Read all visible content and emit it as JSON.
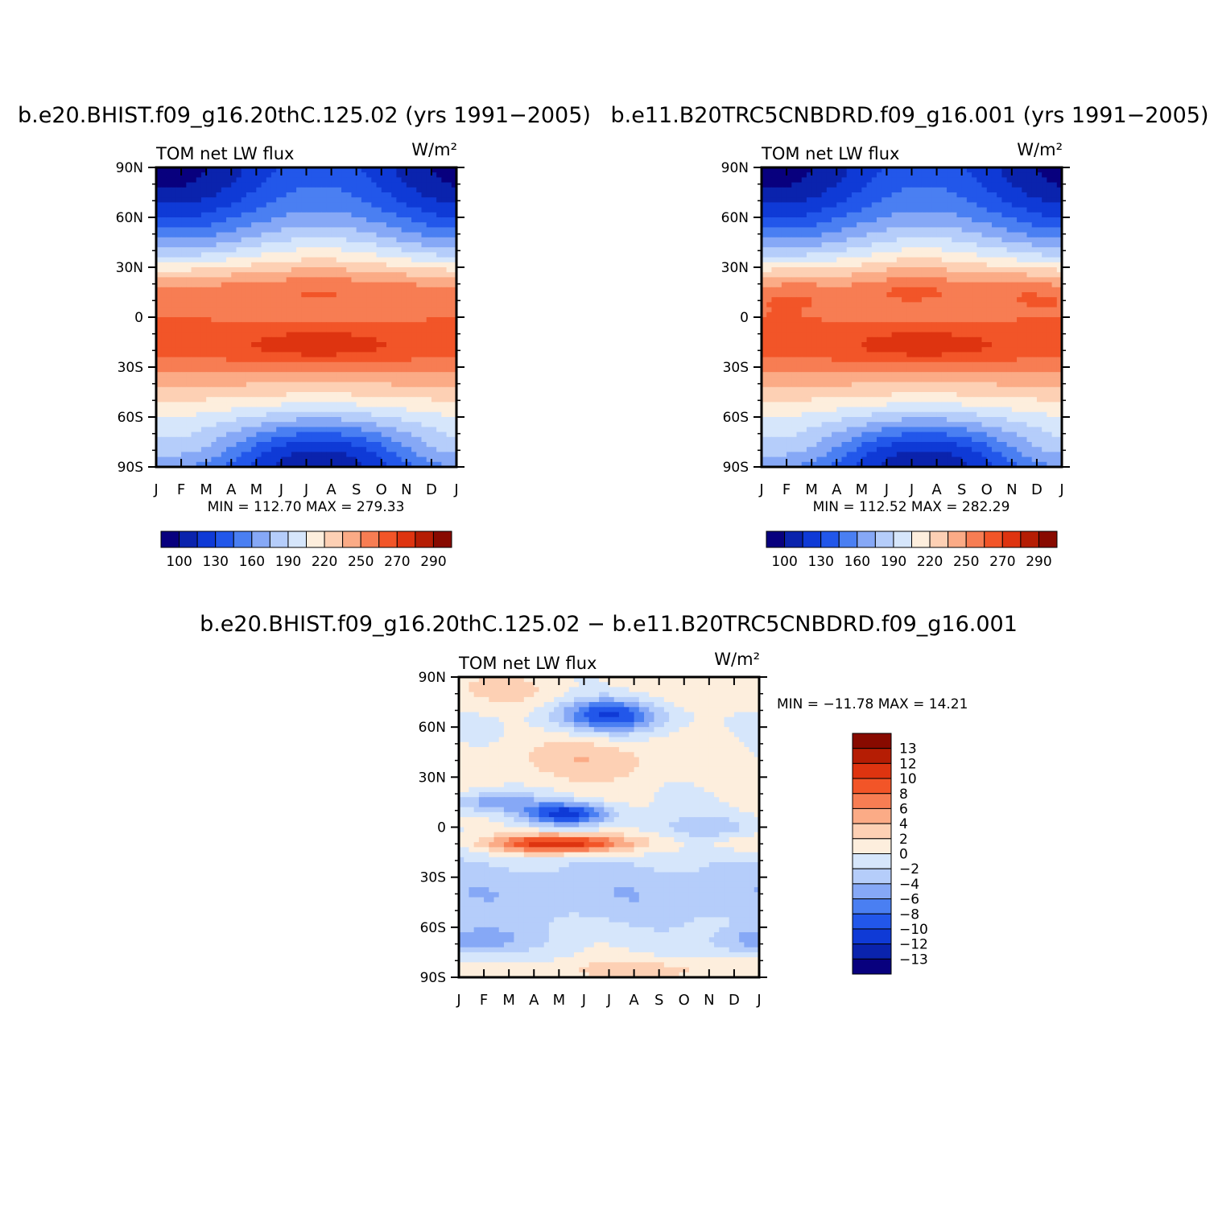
{
  "colors": {
    "abs_levels": [
      "#08007e",
      "#0a23ad",
      "#0f3ad6",
      "#2257ea",
      "#4a7ff2",
      "#86a8f6",
      "#b5cdfa",
      "#d6e6fb",
      "#fdeedd",
      "#fdd0b4",
      "#fbab86",
      "#f77d53",
      "#f25528",
      "#de3410",
      "#b51d04",
      "#880a00"
    ],
    "diff_levels": [
      "#08007e",
      "#0a23ad",
      "#0f3ad6",
      "#2257ea",
      "#4a7ff2",
      "#86a8f6",
      "#b5cdfa",
      "#d6e6fb",
      "#fdeedd",
      "#fdd0b4",
      "#fbab86",
      "#f77d53",
      "#f25528",
      "#de3410",
      "#b51d04",
      "#880a00"
    ]
  },
  "chart_data": [
    {
      "type": "heatmap",
      "title": "b.e20.BHIST.f09_g16.20thC.125.02 (yrs 1991−2005)",
      "left_string": "TOM  net  LW  flux",
      "right_string": "W/m²",
      "x_tick_labels": [
        "J",
        "F",
        "M",
        "A",
        "M",
        "J",
        "J",
        "A",
        "S",
        "O",
        "N",
        "D",
        "J"
      ],
      "y_tick_labels": [
        "90N",
        "60N",
        "30N",
        "0",
        "30S",
        "60S",
        "90S"
      ],
      "ylim": [
        -90,
        90
      ],
      "xlim": [
        0,
        12
      ],
      "min_max_text": "MIN  =  112.70  MAX  =  279.33",
      "min": 112.7,
      "max": 279.33,
      "colorbar_labels": [
        "100",
        "130",
        "160",
        "190",
        "220",
        "250",
        "270",
        "290"
      ],
      "variant": 0
    },
    {
      "type": "heatmap",
      "title": "b.e11.B20TRC5CNBDRD.f09_g16.001 (yrs 1991−2005)",
      "left_string": "TOM  net  LW  flux",
      "right_string": "W/m²",
      "x_tick_labels": [
        "J",
        "F",
        "M",
        "A",
        "M",
        "J",
        "J",
        "A",
        "S",
        "O",
        "N",
        "D",
        "J"
      ],
      "y_tick_labels": [
        "90N",
        "60N",
        "30N",
        "0",
        "30S",
        "60S",
        "90S"
      ],
      "ylim": [
        -90,
        90
      ],
      "xlim": [
        0,
        12
      ],
      "min_max_text": "MIN  =  112.52  MAX  =  282.29",
      "min": 112.52,
      "max": 282.29,
      "colorbar_labels": [
        "100",
        "130",
        "160",
        "190",
        "220",
        "250",
        "270",
        "290"
      ],
      "variant": 1
    },
    {
      "type": "heatmap",
      "title": "b.e20.BHIST.f09_g16.20thC.125.02  −  b.e11.B20TRC5CNBDRD.f09_g16.001",
      "left_string": "TOM  net  LW  flux",
      "right_string": "W/m²",
      "x_tick_labels": [
        "J",
        "F",
        "M",
        "A",
        "M",
        "J",
        "J",
        "A",
        "S",
        "O",
        "N",
        "D",
        "J"
      ],
      "y_tick_labels": [
        "90N",
        "60N",
        "30N",
        "0",
        "30S",
        "60S",
        "90S"
      ],
      "ylim": [
        -90,
        90
      ],
      "xlim": [
        0,
        12
      ],
      "min_max_text": "MIN  =  −11.78  MAX  =    14.21",
      "min": -11.78,
      "max": 14.21,
      "colorbar_labels": [
        "13",
        "12",
        "10",
        "8",
        "6",
        "4",
        "2",
        "0",
        "−2",
        "−4",
        "−6",
        "−8",
        "−10",
        "−12",
        "−13"
      ],
      "levels": [
        -13,
        -12,
        -10,
        -8,
        -6,
        -4,
        -2,
        0,
        2,
        4,
        6,
        8,
        10,
        12,
        13
      ]
    }
  ]
}
